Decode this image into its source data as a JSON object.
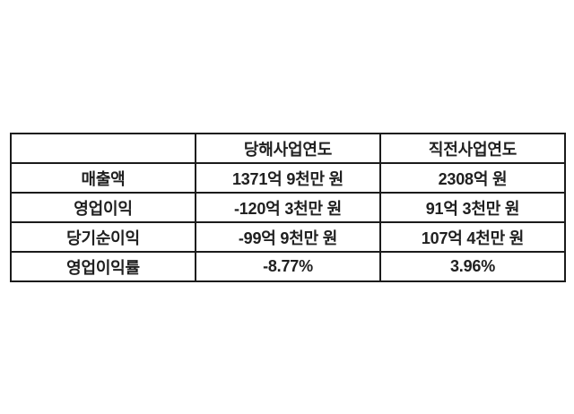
{
  "chart_data": {
    "type": "table",
    "columns": [
      "",
      "당해사업연도",
      "직전사업연도"
    ],
    "rows": [
      [
        "매출액",
        "1371억 9천만 원",
        "2308억 원"
      ],
      [
        "영업이익",
        "-120억 3천만 원",
        "91억 3천만 원"
      ],
      [
        "당기순이익",
        "-99억 9천만 원",
        "107억 4천만 원"
      ],
      [
        "영업이익률",
        "-8.77%",
        "3.96%"
      ]
    ],
    "layout": {
      "grid": "on",
      "column_count": 3,
      "row_count": 5,
      "alignment": "center"
    },
    "colors": {
      "border": "#1b1b1b",
      "text": "#202020",
      "background": "#ffffff"
    }
  }
}
